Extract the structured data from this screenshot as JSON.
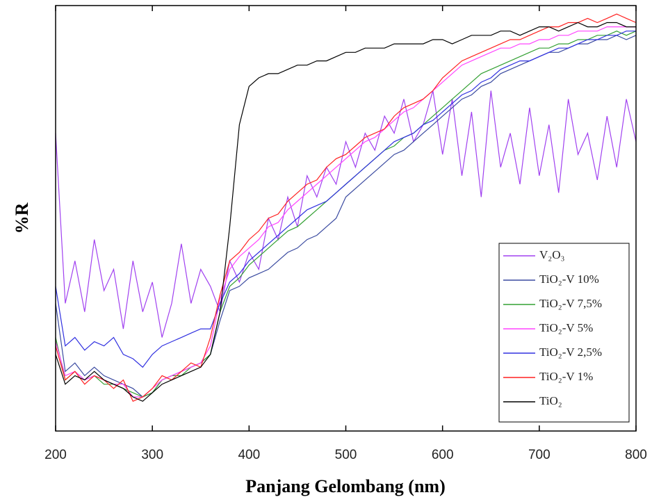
{
  "chart_data": {
    "type": "line",
    "xlabel": "Panjang Gelombang (nm)",
    "ylabel": "%R",
    "xlim": [
      200,
      800
    ],
    "xticks": [
      200,
      300,
      400,
      500,
      600,
      700,
      800
    ],
    "ylim": [
      0,
      100
    ],
    "legend": "lower right",
    "x": [
      200,
      210,
      220,
      230,
      240,
      250,
      260,
      270,
      280,
      290,
      300,
      310,
      320,
      330,
      340,
      350,
      360,
      370,
      380,
      390,
      400,
      410,
      420,
      430,
      440,
      450,
      460,
      470,
      480,
      490,
      500,
      510,
      520,
      530,
      540,
      550,
      560,
      570,
      580,
      590,
      600,
      610,
      620,
      630,
      640,
      650,
      660,
      670,
      680,
      690,
      700,
      710,
      720,
      730,
      740,
      750,
      760,
      770,
      780,
      790,
      800
    ],
    "series": [
      {
        "name": "V₂O₃",
        "color": "#a040f0",
        "values": [
          70,
          30,
          40,
          28,
          45,
          33,
          38,
          24,
          40,
          28,
          35,
          22,
          30,
          44,
          30,
          38,
          34,
          28,
          40,
          35,
          42,
          38,
          50,
          45,
          55,
          48,
          60,
          55,
          62,
          58,
          68,
          62,
          70,
          66,
          74,
          70,
          78,
          68,
          72,
          80,
          65,
          78,
          60,
          75,
          55,
          80,
          62,
          70,
          58,
          76,
          60,
          72,
          56,
          78,
          65,
          70,
          59,
          74,
          62,
          78,
          68
        ]
      },
      {
        "name": "TiO₂-V 10%",
        "color": "#3a4aa0",
        "values": [
          30,
          14,
          16,
          13,
          15,
          13,
          12,
          11,
          10,
          8,
          9,
          12,
          13,
          14,
          15,
          16,
          18,
          26,
          33,
          34,
          36,
          37,
          38,
          40,
          42,
          43,
          45,
          46,
          48,
          50,
          55,
          57,
          59,
          61,
          63,
          65,
          66,
          68,
          70,
          72,
          74,
          76,
          78,
          79,
          81,
          82,
          84,
          85,
          86,
          87,
          88,
          89,
          89,
          90,
          91,
          91,
          92,
          92,
          93,
          92,
          93
        ]
      },
      {
        "name": "TiO₂-V 7,5%",
        "color": "#33a033",
        "values": [
          22,
          12,
          14,
          12,
          13,
          11,
          11,
          10,
          9,
          8,
          9,
          12,
          13,
          13,
          15,
          16,
          18,
          28,
          34,
          36,
          39,
          41,
          43,
          45,
          47,
          48,
          50,
          52,
          54,
          56,
          58,
          60,
          62,
          64,
          66,
          67,
          69,
          70,
          72,
          74,
          76,
          78,
          80,
          82,
          84,
          85,
          86,
          87,
          88,
          89,
          90,
          90,
          91,
          91,
          92,
          92,
          93,
          93,
          94,
          93,
          94
        ]
      },
      {
        "name": "TiO₂-V 5%",
        "color": "#ff44ff",
        "values": [
          21,
          13,
          14,
          12,
          13,
          12,
          11,
          11,
          8,
          8,
          10,
          12,
          13,
          14,
          15,
          16,
          20,
          31,
          38,
          41,
          43,
          45,
          48,
          49,
          52,
          54,
          56,
          58,
          60,
          62,
          64,
          66,
          68,
          69,
          71,
          73,
          75,
          76,
          78,
          80,
          82,
          84,
          86,
          87,
          88,
          89,
          90,
          90,
          91,
          91,
          92,
          92,
          93,
          93,
          94,
          94,
          94,
          95,
          95,
          95,
          95
        ]
      },
      {
        "name": "TiO₂-V 2,5%",
        "color": "#3030e0",
        "values": [
          34,
          20,
          22,
          19,
          21,
          20,
          22,
          18,
          17,
          15,
          18,
          20,
          21,
          22,
          23,
          24,
          24,
          30,
          35,
          37,
          40,
          42,
          44,
          46,
          48,
          50,
          52,
          53,
          54,
          56,
          58,
          60,
          62,
          64,
          66,
          68,
          69,
          70,
          72,
          73,
          75,
          77,
          79,
          80,
          82,
          83,
          85,
          86,
          87,
          87,
          88,
          89,
          90,
          90,
          91,
          92,
          92,
          93,
          93,
          94,
          94
        ]
      },
      {
        "name": "TiO₂-V 1%",
        "color": "#ff2020",
        "values": [
          20,
          12,
          14,
          11,
          13,
          12,
          10,
          12,
          7,
          8,
          10,
          13,
          12,
          14,
          16,
          15,
          22,
          32,
          40,
          42,
          45,
          47,
          50,
          51,
          54,
          56,
          58,
          59,
          62,
          64,
          65,
          67,
          69,
          70,
          71,
          74,
          76,
          77,
          78,
          80,
          83,
          85,
          87,
          88,
          89,
          90,
          91,
          92,
          92,
          93,
          94,
          95,
          95,
          96,
          96,
          97,
          96,
          97,
          98,
          97,
          96
        ]
      },
      {
        "name": "TiO₂",
        "color": "#000000",
        "values": [
          18,
          11,
          13,
          12,
          14,
          12,
          11,
          10,
          8,
          7,
          9,
          11,
          12,
          13,
          14,
          15,
          18,
          28,
          48,
          72,
          81,
          83,
          84,
          84,
          85,
          86,
          86,
          87,
          87,
          88,
          89,
          89,
          90,
          90,
          90,
          91,
          91,
          91,
          91,
          92,
          92,
          91,
          92,
          93,
          93,
          93,
          94,
          94,
          93,
          94,
          95,
          95,
          94,
          95,
          96,
          95,
          95,
          96,
          96,
          95,
          95
        ]
      }
    ]
  }
}
